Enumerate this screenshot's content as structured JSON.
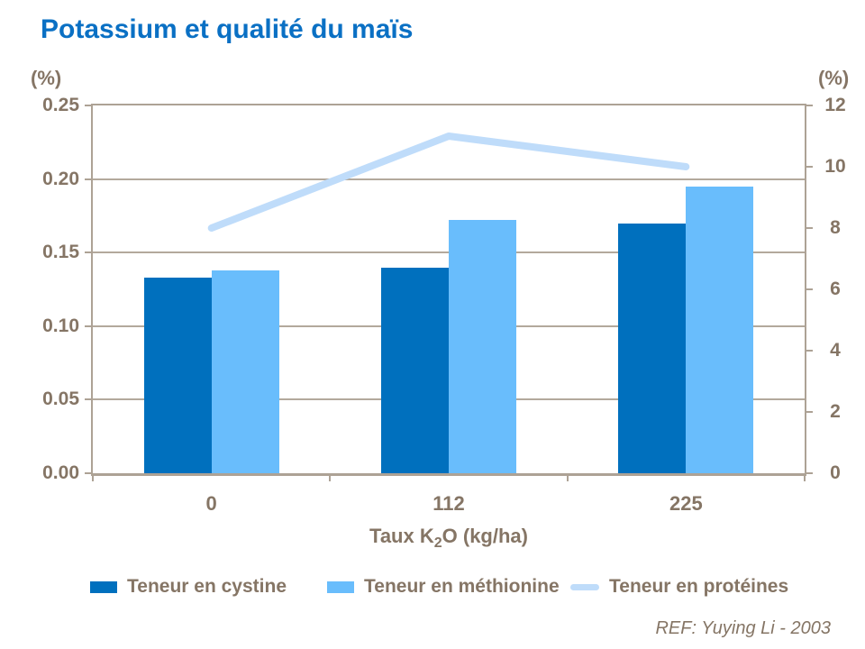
{
  "slide": {
    "title": "Potassium et qualité du maïs",
    "reference": "REF: Yuying Li - 2003"
  },
  "chart_data": {
    "type": "bar",
    "subtype": "grouped-bars-with-line-overlay-dual-axis",
    "categories": [
      "0",
      "112",
      "225"
    ],
    "x_axis": {
      "title_plain": "Taux K2O (kg/ha)",
      "title_pre": "Taux K",
      "title_sub": "2",
      "title_post": "O (kg/ha)"
    },
    "left_axis": {
      "unit": "(%)",
      "min": 0,
      "max": 0.25,
      "tick_labels": [
        "0.25",
        "0.20",
        "0.15",
        "0.10",
        "0.05",
        "0.00"
      ]
    },
    "right_axis": {
      "unit": "(%)",
      "min": 0,
      "max": 12,
      "tick_labels": [
        "12",
        "10",
        "8",
        "6",
        "4",
        "2",
        "0"
      ]
    },
    "series": [
      {
        "name": "Teneur en cystine",
        "type": "bar",
        "axis": "left",
        "color": "#0070BE",
        "values": [
          0.133,
          0.14,
          0.17
        ]
      },
      {
        "name": "Teneur en méthionine",
        "type": "bar",
        "axis": "left",
        "color": "#69BDFC",
        "values": [
          0.138,
          0.172,
          0.195
        ]
      },
      {
        "name": "Teneur en protéines",
        "type": "line",
        "axis": "right",
        "color": "#BFDCFA",
        "values": [
          8,
          11,
          10
        ]
      }
    ],
    "legend_position": "bottom",
    "grid": "horizontal"
  },
  "colors": {
    "title": "#0A70C4",
    "axis_text": "#857565",
    "grid_line": "#B3A99C",
    "plot_border": "#ADA295"
  }
}
